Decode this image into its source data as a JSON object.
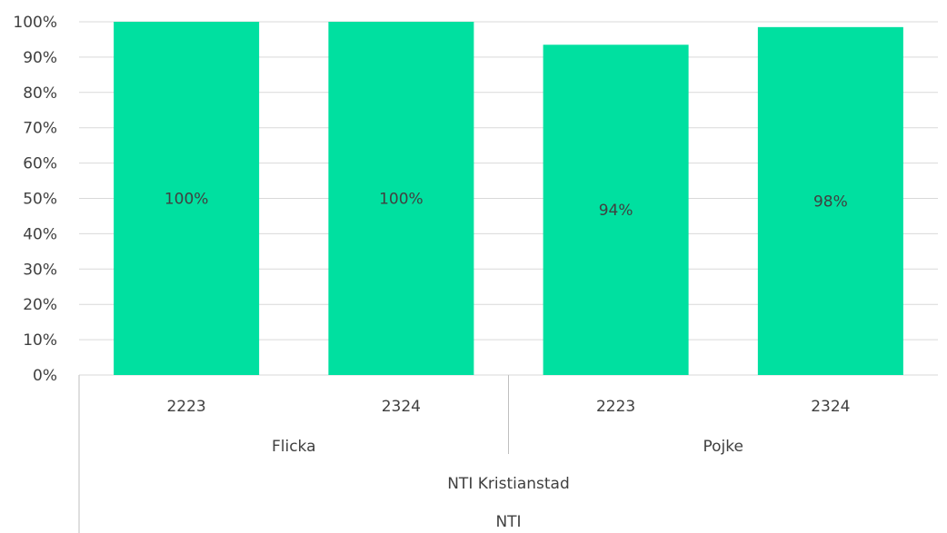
{
  "chart_data": {
    "type": "bar",
    "categories": [
      {
        "year": "2223",
        "gender": "Flicka"
      },
      {
        "year": "2324",
        "gender": "Flicka"
      },
      {
        "year": "2223",
        "gender": "Pojke"
      },
      {
        "year": "2324",
        "gender": "Pojke"
      }
    ],
    "category_groups": {
      "level2": [
        "Flicka",
        "Pojke"
      ],
      "level3": "NTI Kristianstad",
      "level4": "NTI"
    },
    "values": [
      1.0,
      1.0,
      0.935,
      0.985
    ],
    "data_labels": [
      "100%",
      "100%",
      "94%",
      "98%"
    ],
    "ylim": [
      0,
      1
    ],
    "y_ticks": [
      "0%",
      "10%",
      "20%",
      "30%",
      "40%",
      "50%",
      "60%",
      "70%",
      "80%",
      "90%",
      "100%"
    ],
    "y_tick_values": [
      0,
      0.1,
      0.2,
      0.3,
      0.4,
      0.5,
      0.6,
      0.7,
      0.8,
      0.9,
      1.0
    ],
    "grid": true,
    "legend": "none",
    "bar_color": "#00E0A0",
    "grid_color": "#D9D9D9",
    "text_color": "#404040",
    "title": "",
    "xlabel": "",
    "ylabel": ""
  }
}
